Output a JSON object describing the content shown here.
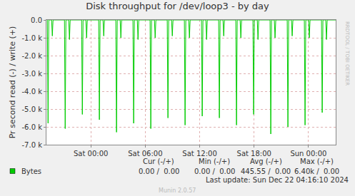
{
  "chart_data": {
    "type": "line",
    "title": "Disk throughput for /dev/loop3 - by day",
    "y_label": "Pr second read (-) / write (+)",
    "x": [
      -4.8,
      -4.72,
      -4.64,
      -4.33,
      -4.25,
      -4.17,
      -2.91,
      -2.83,
      -2.75,
      -2.44,
      -2.36,
      -2.28,
      -1.02,
      -0.94,
      -0.86,
      -0.55,
      -0.47,
      -0.39,
      0.86,
      0.94,
      1.02,
      1.34,
      1.42,
      1.5,
      2.75,
      2.83,
      2.91,
      3.23,
      3.31,
      3.39,
      4.64,
      4.72,
      4.8,
      5.12,
      5.2,
      5.28,
      6.53,
      6.61,
      6.69,
      7.01,
      7.09,
      7.17,
      8.42,
      8.5,
      8.58,
      8.9,
      8.98,
      9.06,
      10.31,
      10.39,
      10.47,
      10.79,
      10.87,
      10.95,
      12.2,
      12.28,
      12.36,
      12.68,
      12.76,
      12.84,
      14.09,
      14.17,
      14.25,
      14.57,
      14.65,
      14.73,
      15.98,
      16.06,
      16.14,
      16.46,
      16.54,
      16.62,
      17.87,
      17.95,
      18.03,
      18.35,
      18.43,
      18.51,
      19.76,
      19.84,
      19.92,
      20.23,
      20.31,
      20.39,
      21.65,
      21.73,
      21.81,
      22.12,
      22.2,
      22.28,
      23.54,
      23.62,
      23.7,
      24.01,
      24.09,
      24.17,
      25.43,
      25.51,
      25.59,
      25.9,
      25.98,
      26.06,
      27.0
    ],
    "series": [
      {
        "name": "Bytes",
        "color": "#00CC00",
        "values": [
          0,
          -5800,
          0,
          0,
          -900,
          0,
          0,
          -6100,
          0,
          0,
          -1100,
          0,
          0,
          -5300,
          0,
          0,
          -1000,
          0,
          0,
          -5600,
          0,
          0,
          -900,
          0,
          0,
          -6300,
          0,
          0,
          -1000,
          0,
          0,
          -5800,
          0,
          0,
          -1100,
          0,
          0,
          -6100,
          0,
          0,
          -1000,
          0,
          0,
          -5500,
          0,
          0,
          -900,
          0,
          0,
          -5900,
          0,
          0,
          -1000,
          0,
          0,
          -5400,
          0,
          0,
          -1100,
          0,
          0,
          -5500,
          0,
          0,
          -900,
          0,
          0,
          -5900,
          0,
          0,
          -1000,
          0,
          0,
          -5300,
          0,
          0,
          -1100,
          0,
          0,
          -6400,
          0,
          0,
          -1000,
          0,
          0,
          -6000,
          0,
          0,
          -900,
          0,
          0,
          -5900,
          0,
          0,
          -1000,
          0,
          0,
          -5200,
          0,
          0,
          -1100,
          0,
          0
        ]
      }
    ],
    "xlim": [
      -4.9,
      27.0
    ],
    "xticks": [
      {
        "value": 0,
        "label": "Sat 00:00"
      },
      {
        "value": 6,
        "label": "Sat 06:00"
      },
      {
        "value": 12,
        "label": "Sat 12:00"
      },
      {
        "value": 18,
        "label": "Sat 18:00"
      },
      {
        "value": 24,
        "label": "Sun 00:00"
      }
    ],
    "ylim": [
      -7000,
      0
    ],
    "yticks": [
      {
        "value": -7000,
        "label": "-7.0 k"
      },
      {
        "value": -6000,
        "label": "-6.0 k"
      },
      {
        "value": -5000,
        "label": "-5.0 k"
      },
      {
        "value": -4000,
        "label": "-4.0 k"
      },
      {
        "value": -3000,
        "label": "-3.0 k"
      },
      {
        "value": -2000,
        "label": "-2.0 k"
      },
      {
        "value": -1000,
        "label": "-1.0 k"
      },
      {
        "value": 0,
        "label": "0.0"
      }
    ],
    "grid": true,
    "legend_table": {
      "headers": [
        "Cur (-/+)",
        "Min (-/+)",
        "Avg (-/+)",
        "Max (-/+)"
      ],
      "rows": [
        {
          "name": "Bytes",
          "cells": [
            "0.00 /  0.00",
            "0.00 /  0.00",
            "445.55 /  0.00",
            "6.40k /  0.00"
          ]
        }
      ]
    },
    "annotations": [
      "Last update: Sun Dec 22 04:16:10 2024",
      "Munin 2.0.57",
      "RRDTOOL / TOBI OETIKER"
    ]
  }
}
